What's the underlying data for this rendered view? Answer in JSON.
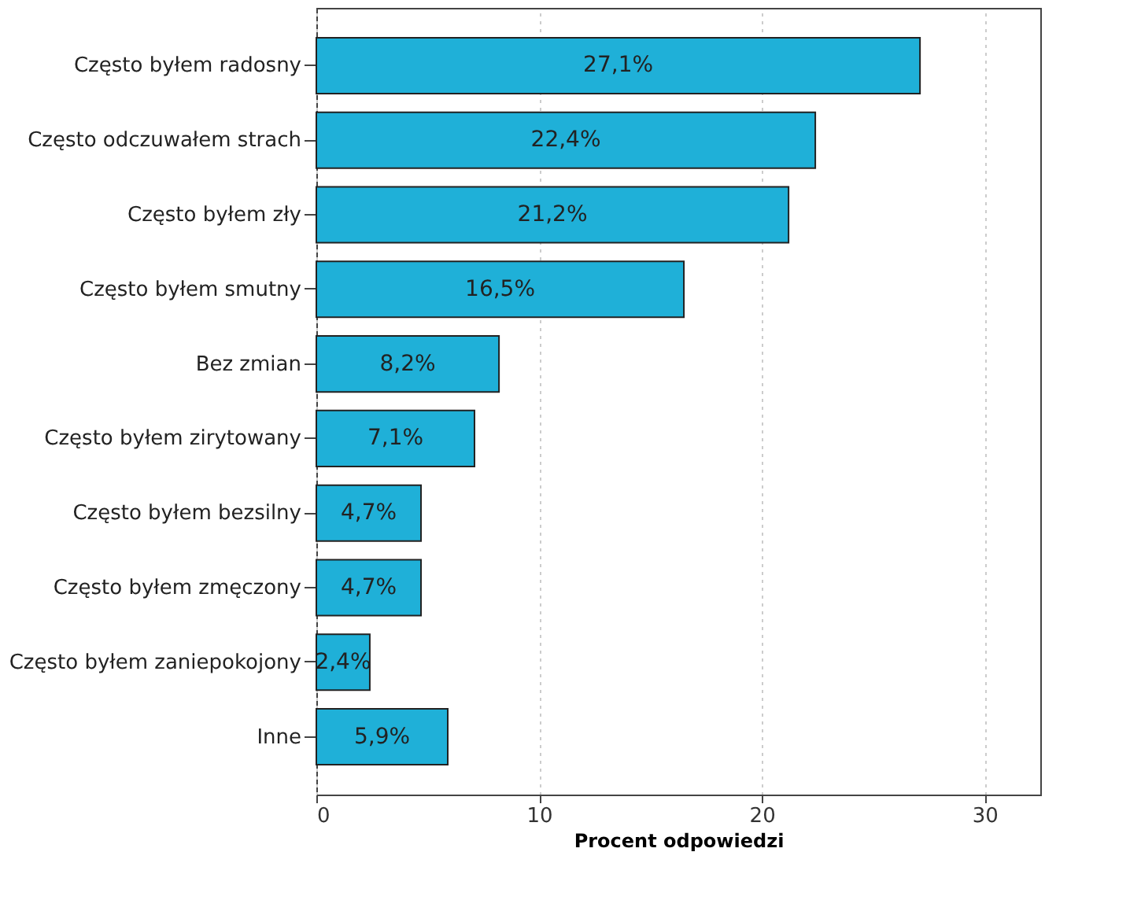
{
  "chart_data": {
    "type": "bar",
    "orientation": "horizontal",
    "xlabel": "Procent odpowiedzi",
    "categories": [
      "Często byłem radosny",
      "Często odczuwałem strach",
      "Często byłem zły",
      "Często byłem smutny",
      "Bez zmian",
      "Często byłem zirytowany",
      "Często byłem bezsilny",
      "Często byłem zmęczony",
      "Często byłem zaniepokojony",
      "Inne"
    ],
    "values": [
      27.1,
      22.4,
      21.2,
      16.5,
      8.2,
      7.1,
      4.7,
      4.7,
      2.4,
      5.9
    ],
    "value_labels": [
      "27,1%",
      "22,4%",
      "21,2%",
      "16,5%",
      "8,2%",
      "7,1%",
      "4,7%",
      "4,7%",
      "2,4%",
      "5,9%"
    ],
    "color": "#1fb0d8",
    "xlim": [
      0,
      32.5
    ],
    "xticks": [
      0,
      10,
      20,
      30
    ],
    "grid": "x"
  }
}
